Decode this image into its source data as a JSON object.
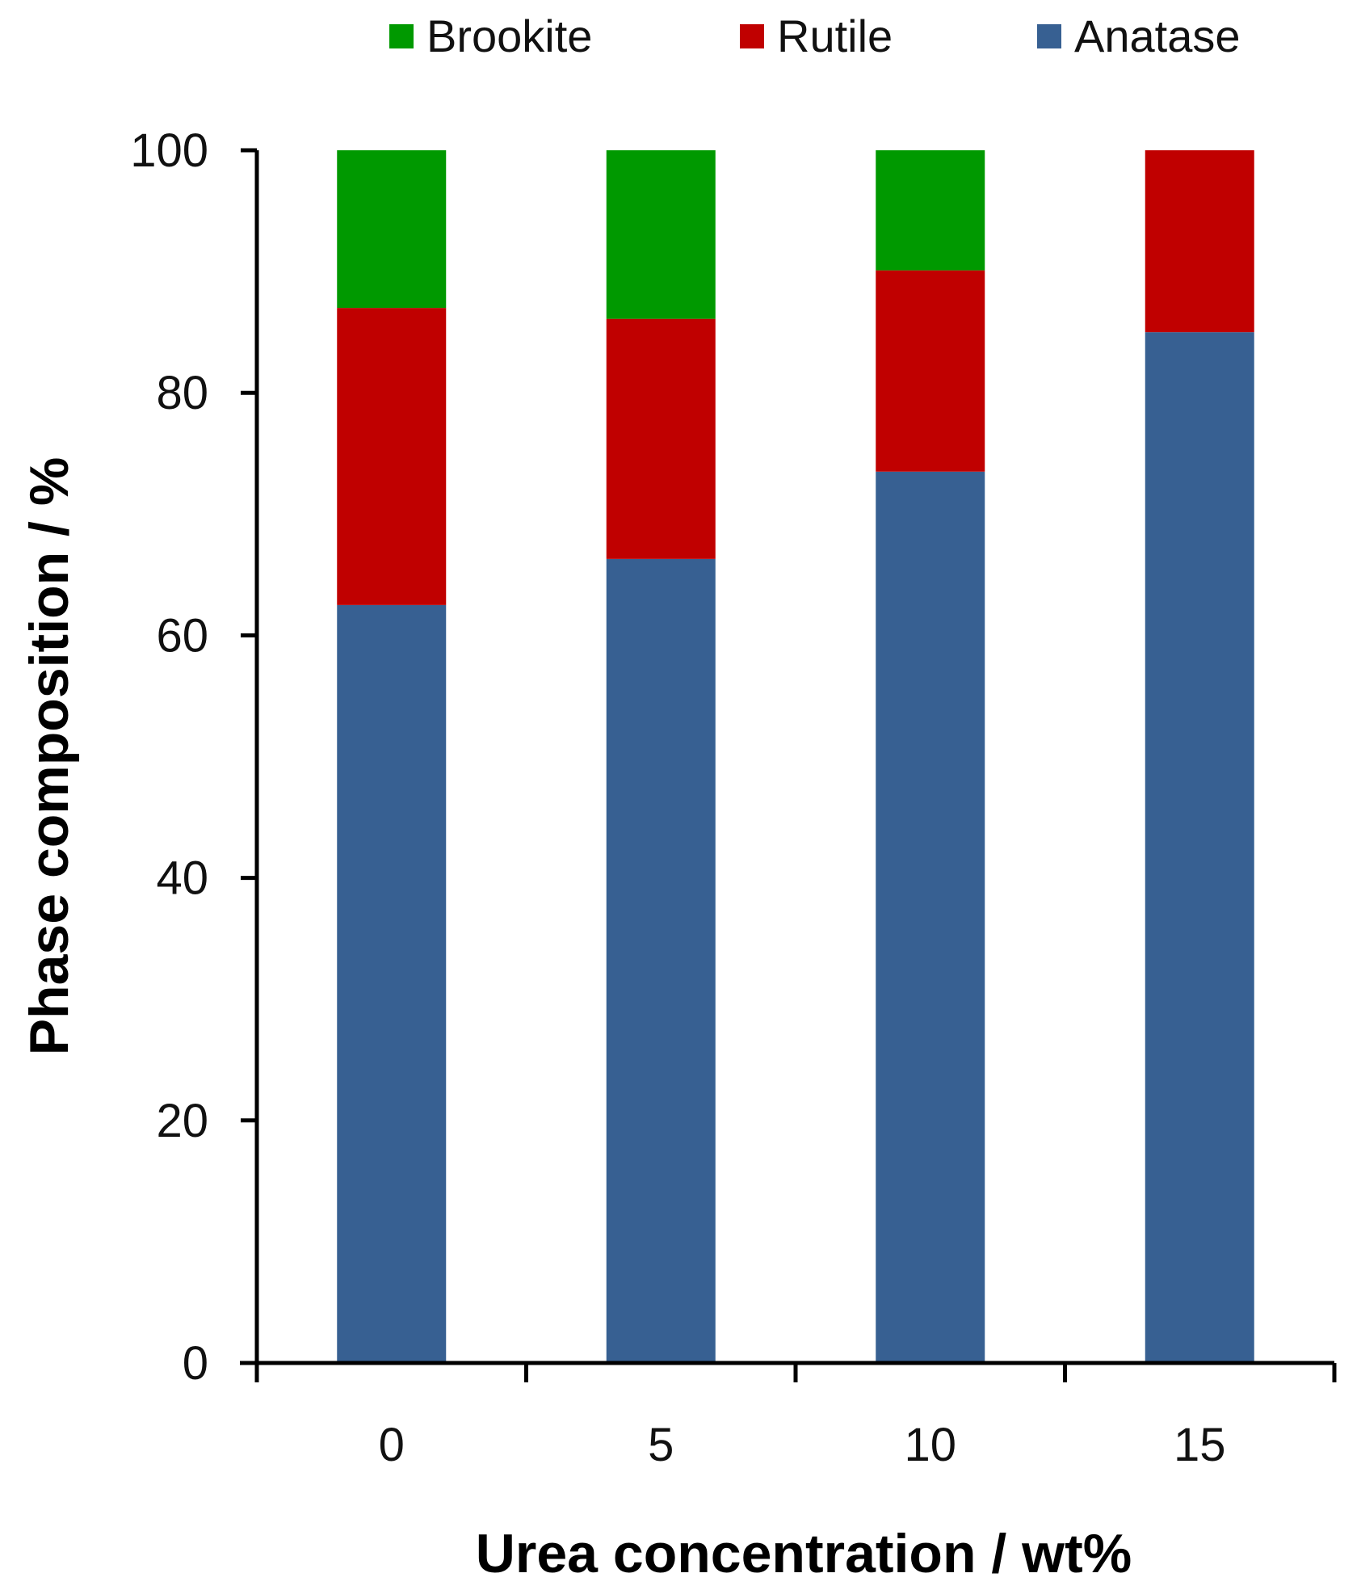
{
  "chart_data": {
    "type": "bar",
    "stacked": true,
    "title": "",
    "xlabel": "Urea concentration  / wt%",
    "ylabel": "Phase composition  / %",
    "categories": [
      "0",
      "5",
      "10",
      "15"
    ],
    "ylim": [
      0,
      100
    ],
    "yticks": [
      "0",
      "20",
      "40",
      "60",
      "80",
      "100"
    ],
    "legend_position": "top",
    "series": [
      {
        "name": "Anatase",
        "color": "#376092",
        "values": [
          62.5,
          66.3,
          73.5,
          85
        ]
      },
      {
        "name": "Rutile",
        "color": "#C00000",
        "values": [
          24.5,
          19.8,
          16.6,
          15
        ]
      },
      {
        "name": "Brookite",
        "color": "#009900",
        "values": [
          13,
          13.9,
          9.9,
          0
        ]
      }
    ],
    "legend_order": [
      "Brookite",
      "Rutile",
      "Anatase"
    ]
  }
}
